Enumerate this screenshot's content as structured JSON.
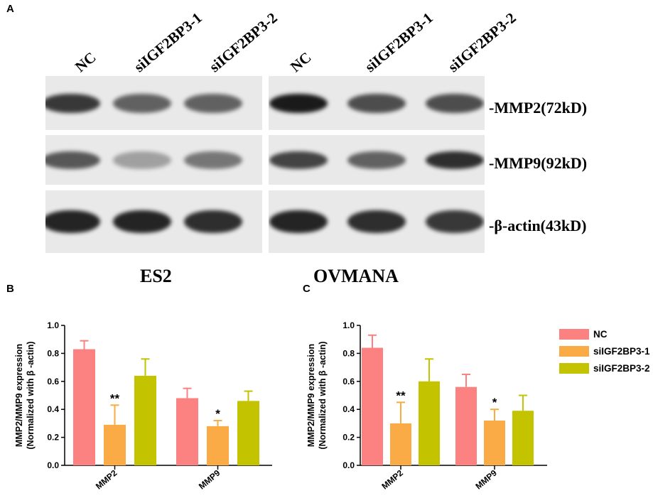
{
  "panel_labels": {
    "a": "A",
    "b": "B",
    "c": "C"
  },
  "blot": {
    "lanes_left": [
      "NC",
      "siIGF2BP3-1",
      "siIGF2BP3-2"
    ],
    "lanes_right": [
      "NC",
      "siIGF2BP3-1",
      "siIGF2BP3-2"
    ],
    "markers": [
      "-MMP2(72kD)",
      "-MMP9(92kD)",
      "-β-actin(43kD)"
    ],
    "cell_lines": [
      "ES2",
      "OVMANA"
    ],
    "band_intensity": {
      "MMP2": {
        "ES2": [
          0.85,
          0.65,
          0.65
        ],
        "OVMANA": [
          1.0,
          0.75,
          0.75
        ]
      },
      "MMP9": {
        "ES2": [
          0.7,
          0.35,
          0.55
        ],
        "OVMANA": [
          0.8,
          0.65,
          0.9
        ]
      },
      "actin": {
        "ES2": [
          0.95,
          0.95,
          0.9
        ],
        "OVMANA": [
          0.95,
          0.9,
          0.85
        ]
      }
    }
  },
  "legend": {
    "items": [
      {
        "label": "NC",
        "color": "#fc8181"
      },
      {
        "label": "siIGF2BP3-1",
        "color": "#fbab45"
      },
      {
        "label": "siIGF2BP3-2",
        "color": "#c3c300"
      }
    ]
  },
  "chart_data": [
    {
      "type": "bar",
      "panel": "B",
      "title": "",
      "xlabel": "",
      "ylabel": "MMP2/MMP9 expression\n(Normalized with β -actin)",
      "ylim": [
        0,
        1.0
      ],
      "yticks": [
        "0.0",
        "0.2",
        "0.4",
        "0.6",
        "0.8",
        "1.0"
      ],
      "categories": [
        "MMP2",
        "MMP9"
      ],
      "series": [
        {
          "name": "NC",
          "color": "#fc8181",
          "values": [
            0.83,
            0.48
          ],
          "errors": [
            0.06,
            0.07
          ]
        },
        {
          "name": "siIGF2BP3-1",
          "color": "#fbab45",
          "values": [
            0.29,
            0.28
          ],
          "errors": [
            0.14,
            0.04
          ]
        },
        {
          "name": "siIGF2BP3-2",
          "color": "#c3c300",
          "values": [
            0.64,
            0.46
          ],
          "errors": [
            0.12,
            0.07
          ]
        }
      ],
      "annotations": [
        {
          "category": "MMP2",
          "series": "siIGF2BP3-1",
          "text": "**"
        },
        {
          "category": "MMP9",
          "series": "siIGF2BP3-1",
          "text": "*"
        }
      ]
    },
    {
      "type": "bar",
      "panel": "C",
      "title": "",
      "xlabel": "",
      "ylabel": "MMP2/MMP9 expression\n(Normalized with β -actin)",
      "ylim": [
        0,
        1.0
      ],
      "yticks": [
        "0.0",
        "0.2",
        "0.4",
        "0.6",
        "0.8",
        "1.0"
      ],
      "categories": [
        "MMP2",
        "MMP9"
      ],
      "series": [
        {
          "name": "NC",
          "color": "#fc8181",
          "values": [
            0.84,
            0.56
          ],
          "errors": [
            0.09,
            0.09
          ]
        },
        {
          "name": "siIGF2BP3-1",
          "color": "#fbab45",
          "values": [
            0.3,
            0.32
          ],
          "errors": [
            0.15,
            0.08
          ]
        },
        {
          "name": "siIGF2BP3-2",
          "color": "#c3c300",
          "values": [
            0.6,
            0.39
          ],
          "errors": [
            0.16,
            0.11
          ]
        }
      ],
      "annotations": [
        {
          "category": "MMP2",
          "series": "siIGF2BP3-1",
          "text": "**"
        },
        {
          "category": "MMP9",
          "series": "siIGF2BP3-1",
          "text": "*"
        }
      ]
    }
  ]
}
